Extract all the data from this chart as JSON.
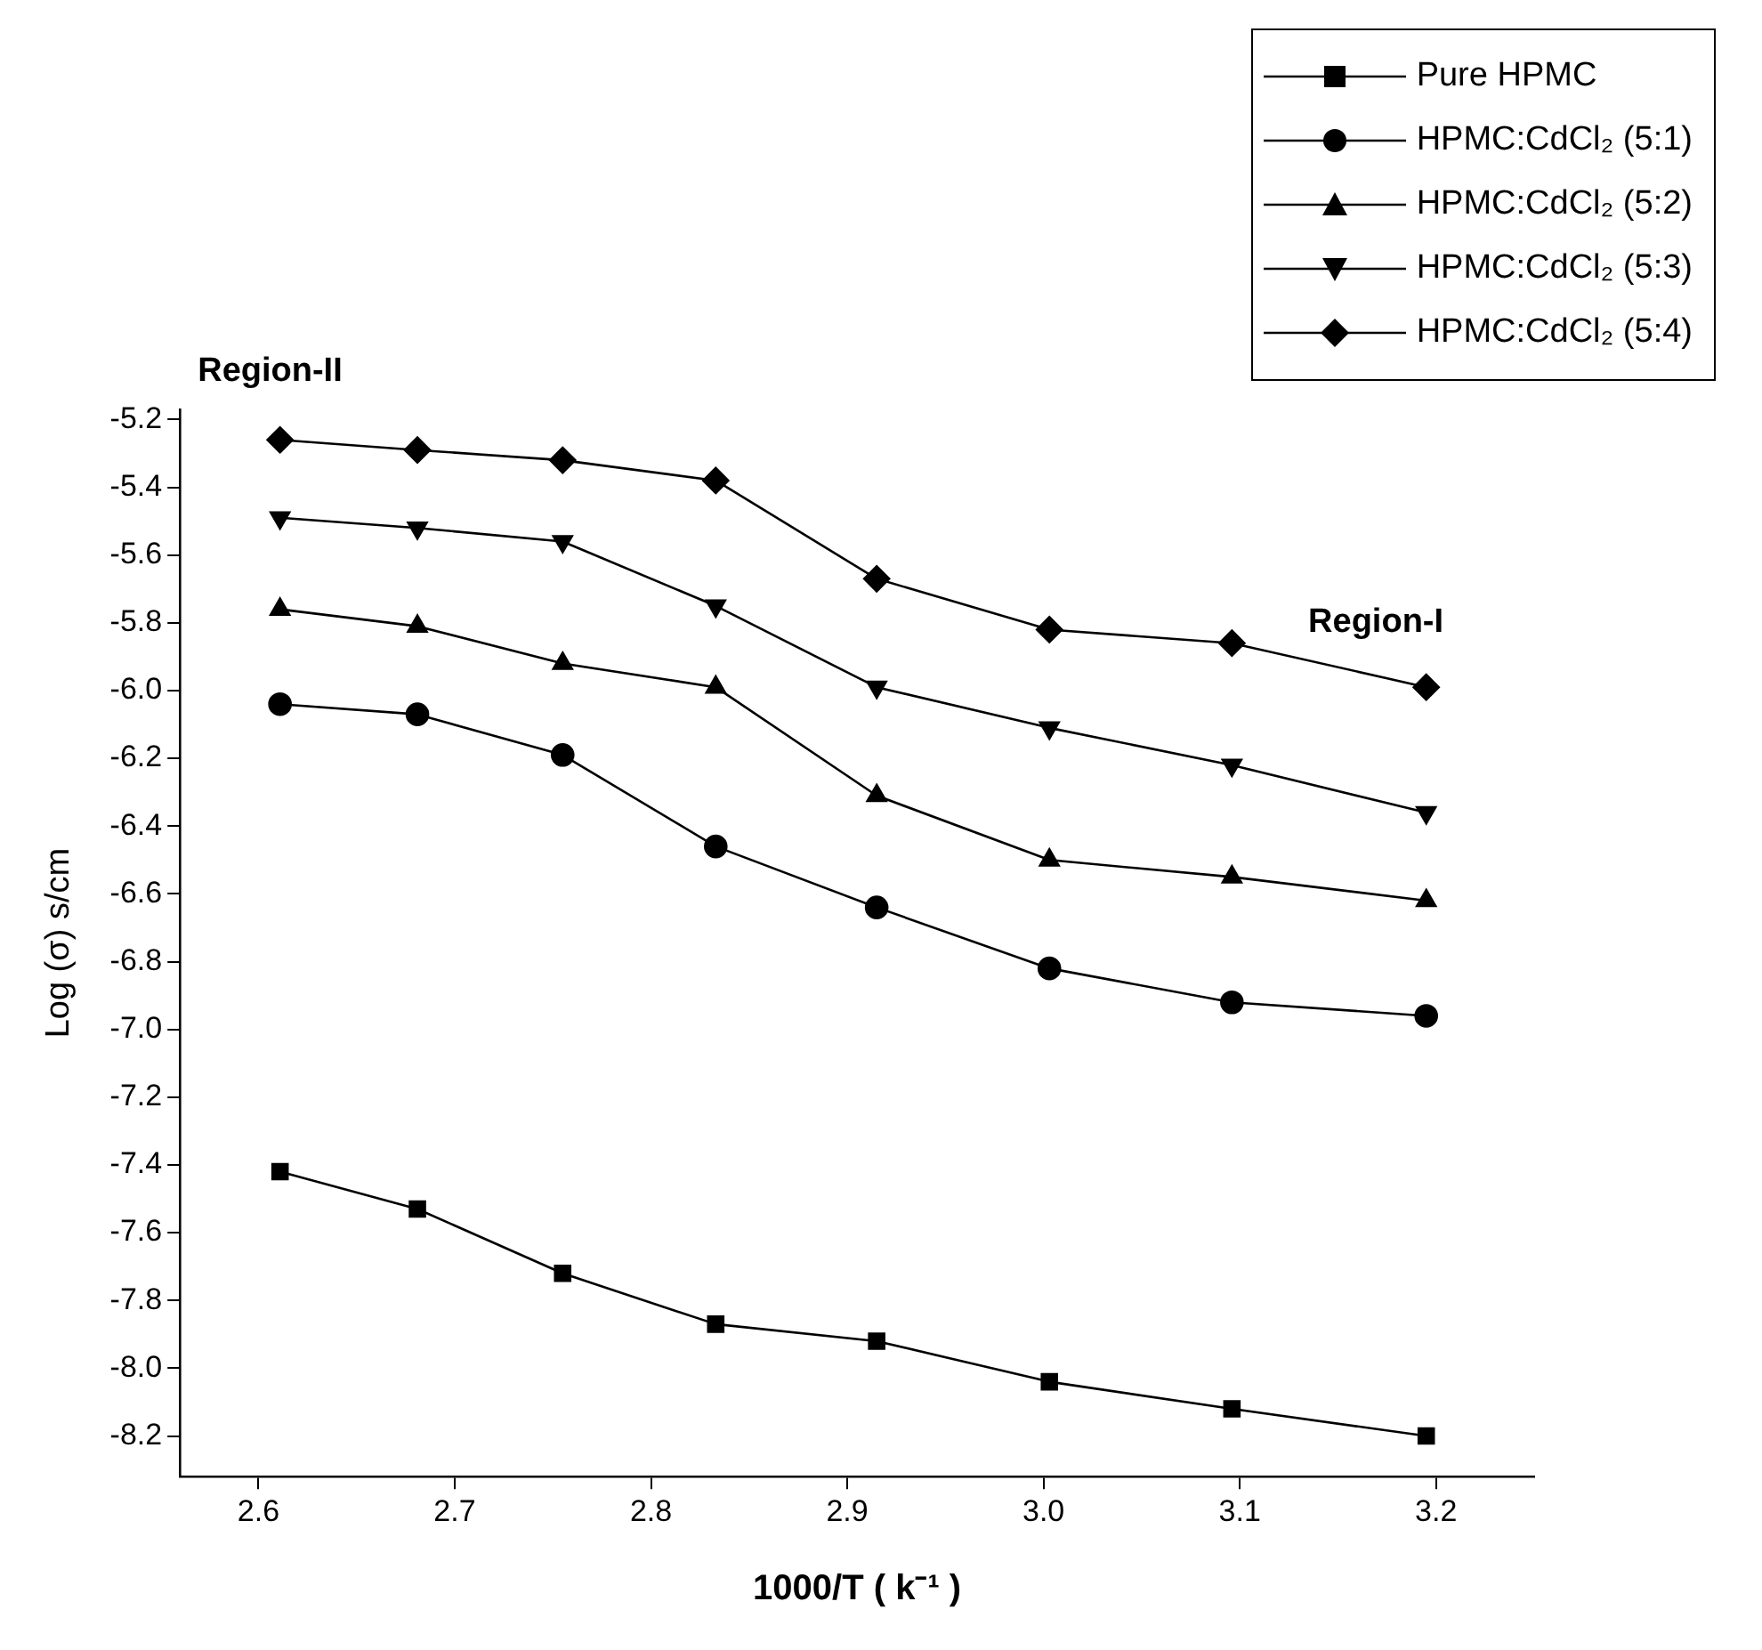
{
  "chart_data": {
    "type": "line",
    "xlabel": "1000/T ( k⁻¹ )",
    "ylabel": "Log (σ) s/cm",
    "x": [
      2.611,
      2.681,
      2.755,
      2.833,
      2.915,
      3.003,
      3.096,
      3.195
    ],
    "series": [
      {
        "name": "Pure HPMC",
        "color": "#000000",
        "marker": "square",
        "values": [
          -7.42,
          -7.53,
          -7.72,
          -7.87,
          -7.92,
          -8.04,
          -8.12,
          -8.2
        ]
      },
      {
        "name": "HPMC:CdCl₂ (5:1)",
        "color": "#000000",
        "marker": "circle",
        "values": [
          -6.04,
          -6.07,
          -6.19,
          -6.46,
          -6.64,
          -6.82,
          -6.92,
          -6.96
        ]
      },
      {
        "name": "HPMC:CdCl₂ (5:2)",
        "color": "#000000",
        "marker": "triangle",
        "values": [
          -5.76,
          -5.81,
          -5.92,
          -5.99,
          -6.31,
          -6.5,
          -6.55,
          -6.62
        ]
      },
      {
        "name": "HPMC:CdCl₂ (5:3)",
        "color": "#000000",
        "marker": "triangle_down",
        "values": [
          -5.49,
          -5.52,
          -5.56,
          -5.75,
          -5.99,
          -6.11,
          -6.22,
          -6.36
        ]
      },
      {
        "name": "HPMC:CdCl₂ (5:4)",
        "color": "#000000",
        "marker": "diamond",
        "values": [
          -5.26,
          -5.29,
          -5.32,
          -5.38,
          -5.67,
          -5.82,
          -5.86,
          -5.99
        ]
      }
    ],
    "xlim": [
      2.56,
      3.25
    ],
    "xticks": [
      2.6,
      2.7,
      2.8,
      2.9,
      {
        "value": 3,
        "label": "3.0"
      },
      3.1,
      3.2
    ],
    "ylim": [
      -8.32,
      -5.17
    ],
    "yticks": [
      -8.2,
      {
        "value": -8,
        "label": "-8.0"
      },
      -7.8,
      -7.6,
      -7.4,
      -7.2,
      {
        "value": -7,
        "label": "-7.0"
      },
      -6.8,
      -6.6,
      -6.4,
      -6.2,
      {
        "value": -6,
        "label": "-6.0"
      },
      -5.8,
      -5.6,
      -5.4,
      -5.2
    ],
    "annotations": [
      "Region-II",
      "Region-I"
    ],
    "grid": false,
    "legend": "top right",
    "line_style": "solid"
  }
}
